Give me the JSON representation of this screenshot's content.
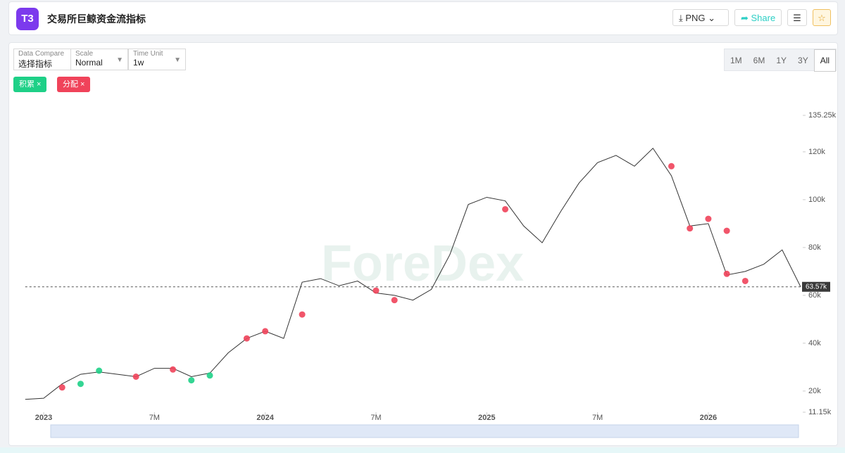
{
  "header": {
    "logo": "T3",
    "title": "交易所巨鲸资金流指标",
    "buttons": [
      "PNG",
      "Share"
    ]
  },
  "controls": [
    {
      "label": "Data Compare",
      "value": "选择指标"
    },
    {
      "label": "Scale",
      "value": "Normal"
    },
    {
      "label": "Time Unit",
      "value": "1w"
    }
  ],
  "range_buttons": [
    "1M",
    "6M",
    "1Y",
    "3Y",
    "All"
  ],
  "watermark": "ForeDex",
  "chart_data": {
    "type": "line",
    "color": "#333333",
    "x": [
      "2022-12",
      "2023-01",
      "2023-02",
      "2023-03",
      "2023-04",
      "2023-05",
      "2023-06",
      "2023-07",
      "2023-08",
      "2023-09",
      "2023-10",
      "2023-11",
      "2023-12",
      "2024-01",
      "2024-02",
      "2024-03",
      "2024-04",
      "2024-05",
      "2024-06",
      "2024-07",
      "2024-08",
      "2024-09",
      "2024-10",
      "2024-11",
      "2024-12",
      "2025-01",
      "2025-02",
      "2025-03",
      "2025-04",
      "2025-05",
      "2025-06",
      "2025-07",
      "2025-08",
      "2025-09",
      "2025-10",
      "2025-11",
      "2025-12",
      "2026-01",
      "2026-02",
      "2026-03",
      "2026-04",
      "2026-05",
      "2026-06"
    ],
    "values": [
      16500,
      17000,
      23000,
      27000,
      28000,
      27000,
      26000,
      29500,
      29500,
      26000,
      27500,
      36000,
      42000,
      45000,
      42000,
      65500,
      67000,
      64000,
      66000,
      61000,
      60000,
      58000,
      62500,
      77000,
      98000,
      101000,
      99500,
      89000,
      82000,
      95000,
      107000,
      115500,
      118500,
      114000,
      121500,
      110000,
      89000,
      90000,
      68500,
      70000,
      73000,
      79000,
      63570
    ],
    "reference_line": {
      "value": 63570,
      "label": "63.57k"
    },
    "markers": [
      {
        "name": "积累",
        "color": "#1ed087",
        "x": [
          "2023-03",
          "2023-04",
          "2023-09",
          "2023-10"
        ],
        "values": [
          23000,
          28500,
          24500,
          26500
        ]
      },
      {
        "name": "分配",
        "color": "#f0435a",
        "x": [
          "2023-02",
          "2023-06",
          "2023-08",
          "2023-12",
          "2024-01",
          "2024-03",
          "2024-07",
          "2024-08",
          "2025-02",
          "2025-11",
          "2025-12",
          "2026-01",
          "2026-02",
          "2026-02",
          "2026-03"
        ],
        "values": [
          21500,
          26000,
          29000,
          42000,
          45000,
          52000,
          62000,
          58000,
          96000,
          114000,
          88000,
          92000,
          87000,
          69000,
          66000
        ]
      }
    ],
    "xlim": [
      "2022-12",
      "2026-06"
    ],
    "xticks": [
      {
        "value": "2023-01",
        "label": "2023"
      },
      {
        "value": "2023-07",
        "label": "7M"
      },
      {
        "value": "2024-01",
        "label": "2024"
      },
      {
        "value": "2024-07",
        "label": "7M"
      },
      {
        "value": "2025-01",
        "label": "2025"
      },
      {
        "value": "2025-07",
        "label": "7M"
      },
      {
        "value": "2026-01",
        "label": "2026"
      }
    ],
    "ylim": [
      11150,
      135250
    ],
    "yticks": [
      {
        "value": 11150,
        "label": "11.15k"
      },
      {
        "value": 20000,
        "label": "20k"
      },
      {
        "value": 40000,
        "label": "40k"
      },
      {
        "value": 60000,
        "label": "60k"
      },
      {
        "value": 80000,
        "label": "80k"
      },
      {
        "value": 100000,
        "label": "100k"
      },
      {
        "value": 120000,
        "label": "120k"
      },
      {
        "value": 135250,
        "label": "135.25k"
      }
    ]
  }
}
